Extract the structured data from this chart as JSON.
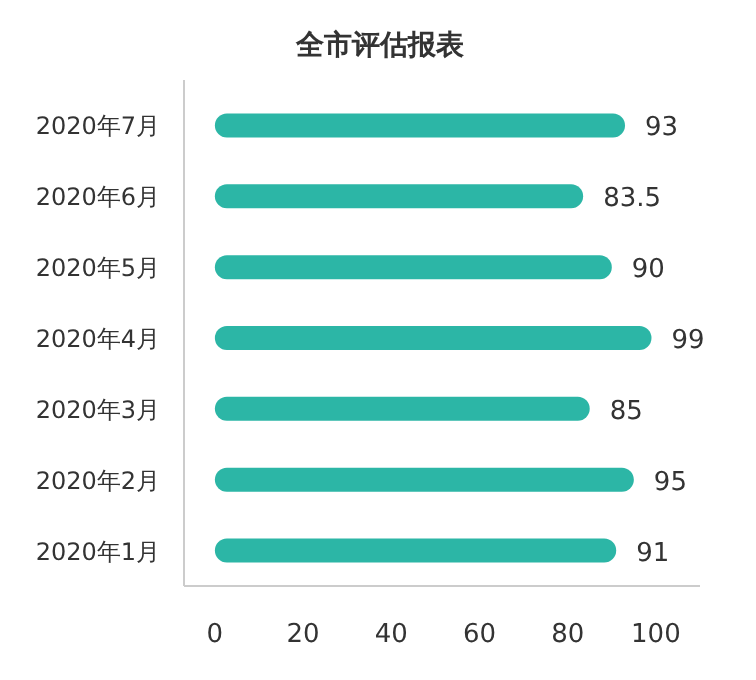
{
  "chart_data": {
    "type": "bar",
    "orientation": "horizontal",
    "title": "全市评估报表",
    "categories": [
      "2020年7月",
      "2020年6月",
      "2020年5月",
      "2020年4月",
      "2020年3月",
      "2020年2月",
      "2020年1月"
    ],
    "values": [
      93,
      83.5,
      90,
      99,
      85,
      95,
      91
    ],
    "color": "#2cb6a6",
    "xlim": [
      -7,
      110
    ],
    "xticks": [
      0,
      20,
      40,
      60,
      80,
      100
    ],
    "data_labels": true,
    "grid": false
  }
}
